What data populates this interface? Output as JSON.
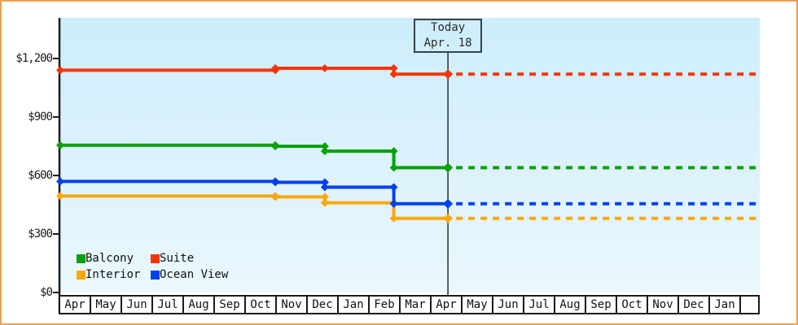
{
  "window": {
    "border_color": "#e8a254",
    "axis_color": "#1b1b1b",
    "today_line_color": "#3f454b",
    "plot_bg_top": "#cdeefb",
    "plot_bg_bottom": "#eaf8fd"
  },
  "today_box": {
    "line1": "Today",
    "line2": "Apr. 18"
  },
  "legend": {
    "rows": [
      [
        {
          "label": "Balcony",
          "color": "#09a109"
        },
        {
          "label": "Suite",
          "color": "#f93408"
        }
      ],
      [
        {
          "label": "Interior",
          "color": "#fca70a"
        },
        {
          "label": "Ocean View",
          "color": "#0540ef"
        }
      ]
    ]
  },
  "y_axis": {
    "tick_labels": [
      {
        "label": "$1,200",
        "value": 1200
      },
      {
        "label": "$900",
        "value": 900
      },
      {
        "label": "$600",
        "value": 600
      },
      {
        "label": "$300",
        "value": 300
      },
      {
        "label": "$0",
        "value": 0
      }
    ]
  },
  "x_axis": {
    "months": [
      "Apr",
      "May",
      "Jun",
      "Jul",
      "Aug",
      "Sep",
      "Oct",
      "Nov",
      "Dec",
      "Jan",
      "Feb",
      "Mar",
      "Apr",
      "May",
      "Jun",
      "Jul",
      "Aug",
      "Sep",
      "Oct",
      "Nov",
      "Dec",
      "Jan"
    ]
  },
  "chart_data": {
    "type": "line",
    "style": "stepped price-history lines with diamond markers; dotted forecast continuation after today",
    "x_unit": "months from first Apr",
    "x_axis_months": [
      "Apr",
      "May",
      "Jun",
      "Jul",
      "Aug",
      "Sep",
      "Oct",
      "Nov",
      "Dec",
      "Jan",
      "Feb",
      "Mar",
      "Apr",
      "May",
      "Jun",
      "Jul",
      "Aug",
      "Sep",
      "Oct",
      "Nov",
      "Dec",
      "Jan"
    ],
    "ylim": [
      0,
      1400
    ],
    "y_ticks": [
      0,
      300,
      600,
      900,
      1200
    ],
    "y_tick_labels": [
      "$0",
      "$300",
      "$600",
      "$900",
      "$1,200"
    ],
    "grid": false,
    "legend_position": "bottom-left inside plot",
    "today": {
      "x": 12.53,
      "label_line1": "Today",
      "label_line2": "Apr. 18"
    },
    "forecast_end_x": 22.6,
    "series": [
      {
        "name": "Suite",
        "color": "#f93408",
        "points": [
          {
            "x": 0,
            "v": 1140
          },
          {
            "x": 6.95,
            "v": 1150
          },
          {
            "x": 8.55,
            "v": 1150
          },
          {
            "x": 10.78,
            "v": 1120
          },
          {
            "x": 12.53,
            "v": 1120
          }
        ],
        "forecast_value": 1120
      },
      {
        "name": "Balcony",
        "color": "#09a109",
        "points": [
          {
            "x": 0,
            "v": 755
          },
          {
            "x": 6.95,
            "v": 750
          },
          {
            "x": 8.55,
            "v": 725
          },
          {
            "x": 10.78,
            "v": 640
          },
          {
            "x": 12.53,
            "v": 640
          }
        ],
        "forecast_value": 640
      },
      {
        "name": "Interior",
        "color": "#fca70a",
        "points": [
          {
            "x": 0,
            "v": 495
          },
          {
            "x": 6.95,
            "v": 490
          },
          {
            "x": 8.55,
            "v": 460
          },
          {
            "x": 10.78,
            "v": 380
          },
          {
            "x": 12.53,
            "v": 380
          }
        ],
        "forecast_value": 380
      },
      {
        "name": "Ocean View",
        "color": "#0540ef",
        "points": [
          {
            "x": 0,
            "v": 570
          },
          {
            "x": 6.95,
            "v": 565
          },
          {
            "x": 8.55,
            "v": 540
          },
          {
            "x": 10.78,
            "v": 455
          },
          {
            "x": 12.53,
            "v": 455
          }
        ],
        "forecast_value": 455
      }
    ]
  }
}
